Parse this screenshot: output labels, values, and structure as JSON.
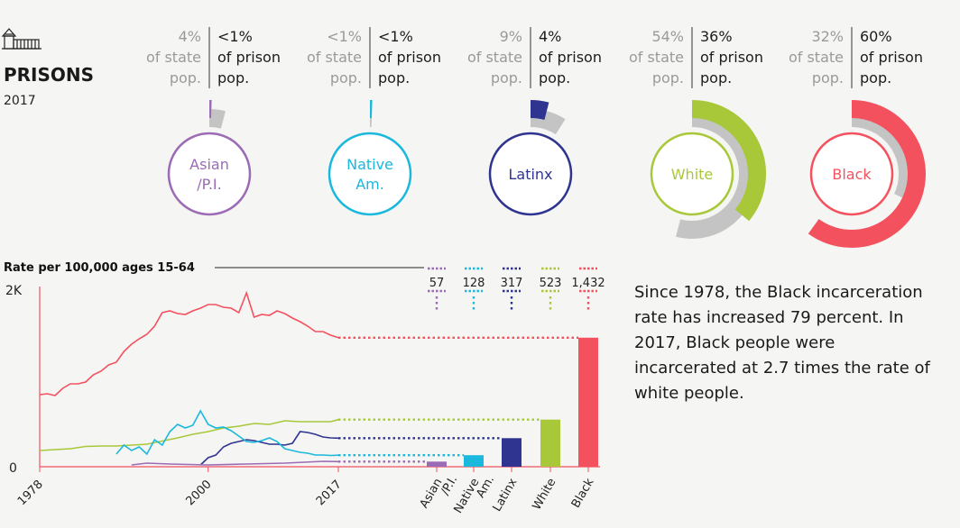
{
  "header": {
    "title": "PRISONS",
    "year": "2017",
    "icon": "prison-building-icon"
  },
  "groups": [
    {
      "key": "asian",
      "label_lines": [
        "Asian",
        "/P.I."
      ],
      "color": "#9b6bb5",
      "state_pct": "4%",
      "prison_pct": "<1%",
      "state_value": 4,
      "prison_value": 0.5
    },
    {
      "key": "native",
      "label_lines": [
        "Native",
        "Am."
      ],
      "color": "#1ab8dc",
      "state_pct": "<1%",
      "prison_pct": "<1%",
      "state_value": 0.5,
      "prison_value": 0.5
    },
    {
      "key": "latinx",
      "label_lines": [
        "Latinx"
      ],
      "color": "#2e3490",
      "state_pct": "9%",
      "prison_pct": "4%",
      "state_value": 9,
      "prison_value": 4
    },
    {
      "key": "white",
      "label_lines": [
        "White"
      ],
      "color": "#a8c83a",
      "state_pct": "54%",
      "prison_pct": "36%",
      "state_value": 54,
      "prison_value": 36
    },
    {
      "key": "black",
      "label_lines": [
        "Black"
      ],
      "color": "#f4515f",
      "state_pct": "32%",
      "prison_pct": "60%",
      "state_value": 32,
      "prison_value": 60
    }
  ],
  "labels": {
    "of_state": "of state",
    "of_prison": "of prison",
    "pop": "pop."
  },
  "chart_data": {
    "type": "line",
    "ylabel": "Rate per 100,000 ages 15-64",
    "ytick_labels": [
      "2K",
      "0"
    ],
    "ylim": [
      0,
      2000
    ],
    "xlim": [
      1978,
      2017
    ],
    "xtick_labels": [
      "1978",
      "2000",
      "2017"
    ],
    "xticks": [
      1978,
      2000,
      2017
    ],
    "series": [
      {
        "name": "Black",
        "color": "#f4515f",
        "x": [
          1978,
          1979,
          1980,
          1981,
          1982,
          1983,
          1984,
          1985,
          1986,
          1987,
          1988,
          1989,
          1990,
          1991,
          1992,
          1993,
          1994,
          1995,
          1996,
          1997,
          1998,
          1999,
          2000,
          2001,
          2002,
          2003,
          2004,
          2005,
          2006,
          2007,
          2008,
          2009,
          2010,
          2011,
          2012,
          2013,
          2014,
          2015,
          2016,
          2017
        ],
        "y": [
          800,
          810,
          790,
          870,
          920,
          920,
          940,
          1020,
          1060,
          1130,
          1160,
          1280,
          1360,
          1420,
          1470,
          1560,
          1710,
          1730,
          1700,
          1690,
          1730,
          1760,
          1800,
          1800,
          1770,
          1760,
          1710,
          1930,
          1660,
          1690,
          1680,
          1730,
          1700,
          1650,
          1610,
          1560,
          1500,
          1500,
          1460,
          1432
        ]
      },
      {
        "name": "White",
        "color": "#a8c83a",
        "x": [
          1978,
          1980,
          1982,
          1984,
          1986,
          1988,
          1990,
          1992,
          1994,
          1996,
          1998,
          2000,
          2002,
          2004,
          2006,
          2008,
          2010,
          2012,
          2014,
          2016,
          2017
        ],
        "y": [
          180,
          190,
          200,
          225,
          230,
          230,
          240,
          250,
          285,
          320,
          360,
          390,
          430,
          450,
          480,
          470,
          510,
          500,
          500,
          500,
          523
        ]
      },
      {
        "name": "Latinx",
        "color": "#2e3490",
        "x": [
          1999,
          2000,
          2001,
          2002,
          2003,
          2004,
          2005,
          2006,
          2007,
          2008,
          2009,
          2010,
          2011,
          2012,
          2013,
          2014,
          2015,
          2016,
          2017
        ],
        "y": [
          20,
          100,
          130,
          220,
          260,
          280,
          300,
          290,
          270,
          250,
          250,
          240,
          260,
          390,
          380,
          360,
          330,
          320,
          317
        ]
      },
      {
        "name": "Native Am.",
        "color": "#1ab8dc",
        "x": [
          1988,
          1989,
          1990,
          1991,
          1992,
          1993,
          1994,
          1995,
          1996,
          1997,
          1998,
          1999,
          2000,
          2001,
          2002,
          2003,
          2004,
          2005,
          2006,
          2007,
          2008,
          2009,
          2010,
          2011,
          2012,
          2013,
          2014,
          2015,
          2016,
          2017
        ],
        "y": [
          140,
          240,
          180,
          220,
          140,
          300,
          240,
          390,
          470,
          430,
          460,
          620,
          470,
          430,
          440,
          400,
          340,
          280,
          270,
          290,
          320,
          280,
          200,
          180,
          160,
          150,
          130,
          130,
          125,
          128
        ]
      },
      {
        "name": "Asian/P.I.",
        "color": "#9b6bb5",
        "x": [
          1990,
          1992,
          1995,
          2000,
          2005,
          2010,
          2015,
          2017
        ],
        "y": [
          20,
          40,
          30,
          20,
          30,
          40,
          60,
          57
        ]
      }
    ],
    "bars": {
      "categories": [
        "Asian /P.I.",
        "Native Am.",
        "Latinx",
        "White",
        "Black"
      ],
      "values": [
        57,
        128,
        317,
        523,
        1432
      ],
      "value_labels": [
        "57",
        "128",
        "317",
        "523",
        "1,432"
      ]
    }
  },
  "text": {
    "paragraph_lines": [
      "Since 1978, the Black incarceration",
      "rate has increased 79 percent. In",
      "2017, Black people were",
      "incarcerated at 2.7 times the rate of",
      "white people."
    ]
  }
}
